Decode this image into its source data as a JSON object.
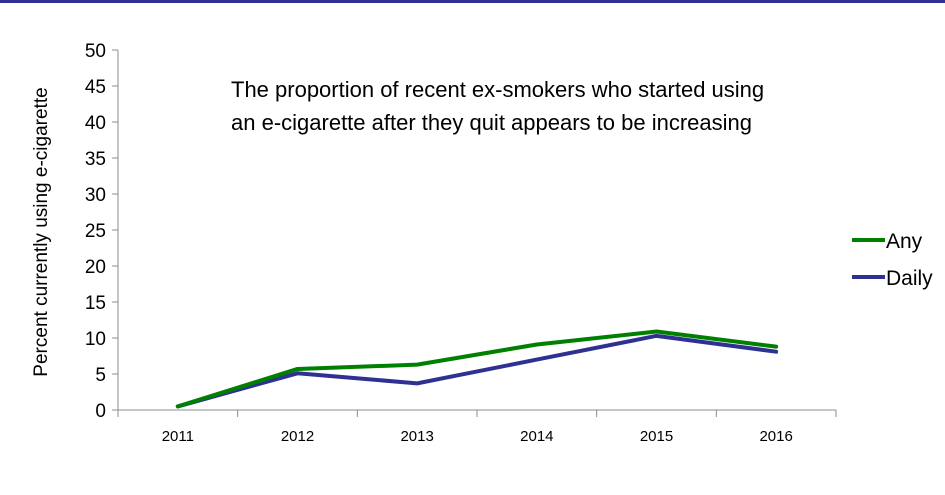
{
  "chart_data": {
    "type": "line",
    "title": "",
    "xlabel": "",
    "ylabel": "Percent currently using e-cigarette",
    "categories": [
      "2011",
      "2012",
      "2013",
      "2014",
      "2015",
      "2016"
    ],
    "ylim": [
      0,
      50
    ],
    "yticks": [
      0,
      5,
      10,
      15,
      20,
      25,
      30,
      35,
      40,
      45,
      50
    ],
    "grid": false,
    "legend_position": "right",
    "annotation_lines": [
      "The proportion of recent ex-smokers who started using",
      "an e-cigarette after they quit appears to be increasing"
    ],
    "series": [
      {
        "name": "Any",
        "color": "#008000",
        "values": [
          0.5,
          5.7,
          6.3,
          9.1,
          10.9,
          8.8
        ]
      },
      {
        "name": "Daily",
        "color": "#2e3192",
        "values": [
          0.5,
          5.1,
          3.7,
          7.0,
          10.3,
          8.1
        ]
      }
    ]
  }
}
